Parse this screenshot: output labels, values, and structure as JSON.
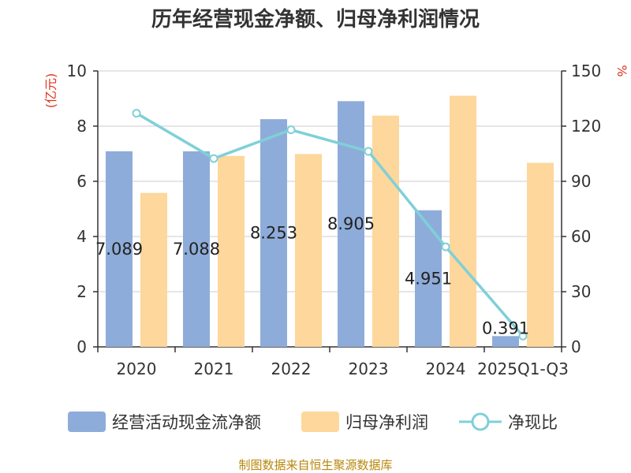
{
  "chart_data": {
    "type": "bar",
    "title": "历年经营现金净额、归母净利润情况",
    "left_axis_unit": "(亿元)",
    "right_axis_unit": "%",
    "categories": [
      "2020",
      "2021",
      "2022",
      "2023",
      "2024",
      "2025Q1-Q3"
    ],
    "ylim": [
      0,
      10
    ],
    "y_ticks": [
      "0",
      "2",
      "4",
      "6",
      "8",
      "10"
    ],
    "y2lim": [
      0,
      150
    ],
    "y2_ticks": [
      "0",
      "30",
      "60",
      "90",
      "120",
      "150"
    ],
    "series": [
      {
        "name": "经营活动现金流净额",
        "kind": "bar",
        "axis": "left",
        "color": "#8eacd9",
        "values": [
          7.089,
          7.088,
          8.253,
          8.905,
          4.951,
          0.391
        ],
        "labels": [
          "7.089",
          "7.088",
          "8.253",
          "8.905",
          "4.951",
          "0.391"
        ]
      },
      {
        "name": "归母净利润",
        "kind": "bar",
        "axis": "left",
        "color": "#fdd79b",
        "values": [
          5.58,
          6.92,
          6.99,
          8.38,
          9.1,
          6.67
        ]
      },
      {
        "name": "净现比",
        "kind": "line",
        "axis": "right",
        "color": "#7fd0d8",
        "values": [
          127,
          102.4,
          118,
          106.3,
          54.4,
          5.9
        ]
      }
    ],
    "grid": true,
    "legend": "bottom"
  },
  "source_text": "制图数据来自恒生聚源数据库"
}
